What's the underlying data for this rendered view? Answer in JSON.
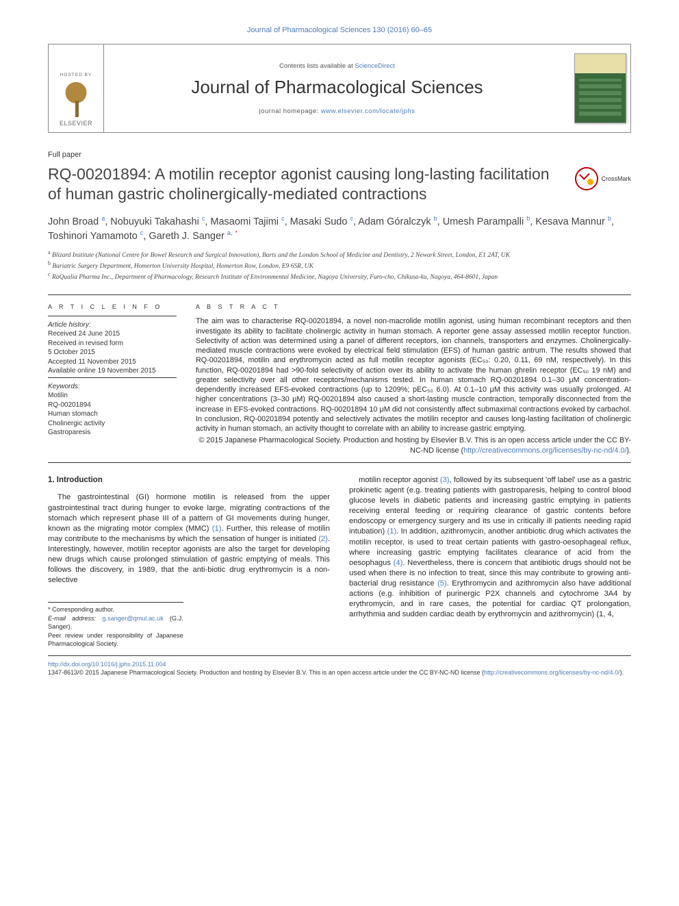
{
  "running_head": "Journal of Pharmacological Sciences 130 (2016) 60–65",
  "masthead": {
    "hosted_by": "HOSTED BY",
    "publisher": "ELSEVIER",
    "contents_prefix": "Contents lists available at ",
    "contents_link": "ScienceDirect",
    "journal": "Journal of Pharmacological Sciences",
    "homepage_prefix": "journal homepage: ",
    "homepage_url": "www.elsevier.com/locate/jphs"
  },
  "article_type": "Full paper",
  "title": "RQ-00201894: A motilin receptor agonist causing long-lasting facilitation of human gastric cholinergically-mediated contractions",
  "crossmark": "CrossMark",
  "authors_html": "John Broad <sup>a</sup>, Nobuyuki Takahashi <sup>c</sup>, Masaomi Tajimi <sup>c</sup>, Masaki Sudo <sup>c</sup>, Adam Góralczyk <sup>b</sup>, Umesh Parampalli <sup>b</sup>, Kesava Mannur <sup>b</sup>, Toshinori Yamamoto <sup>c</sup>, Gareth J. Sanger <sup>a,</sup> <sup class=\"corr\">*</sup>",
  "affiliations": {
    "a": "Blizard Institute (National Centre for Bowel Research and Surgical Innovation), Barts and the London School of Medicine and Dentistry, 2 Newark Street, London, E1 2AT, UK",
    "b": "Bariatric Surgery Department, Homerton University Hospital, Homerton Row, London, E9 6SR, UK",
    "c": "RaQualia Pharma Inc., Department of Pharmacology, Research Institute of Environmental Medicine, Nagoya University, Furo-cho, Chikusa-ku, Nagoya, 464-8601, Japan"
  },
  "info": {
    "heading": "A R T I C L E   I N F O",
    "history_label": "Article history:",
    "history": [
      "Received 24 June 2015",
      "Received in revised form",
      "5 October 2015",
      "Accepted 11 November 2015",
      "Available online 19 November 2015"
    ],
    "keywords_label": "Keywords:",
    "keywords": [
      "Motilin",
      "RQ-00201894",
      "Human stomach",
      "Cholinergic activity",
      "Gastroparesis"
    ]
  },
  "abstract": {
    "heading": "A B S T R A C T",
    "body": "The aim was to characterise RQ-00201894, a novel non-macrolide motilin agonist, using human recombinant receptors and then investigate its ability to facilitate cholinergic activity in human stomach. A reporter gene assay assessed motilin receptor function. Selectivity of action was determined using a panel of different receptors, ion channels, transporters and enzymes. Cholinergically-mediated muscle contractions were evoked by electrical field stimulation (EFS) of human gastric antrum. The results showed that RQ-00201894, motilin and erythromycin acted as full motilin receptor agonists (EC₅₀: 0.20, 0.11, 69 nM, respectively). In this function, RQ-00201894 had >90-fold selectivity of action over its ability to activate the human ghrelin receptor (EC₅₀ 19 nM) and greater selectivity over all other receptors/mechanisms tested. In human stomach RQ-00201894 0.1–30 μM concentration-dependently increased EFS-evoked contractions (up to 1209%; pEC₅₀ 6.0). At 0.1–10 μM this activity was usually prolonged. At higher concentrations (3–30 μM) RQ-00201894 also caused a short-lasting muscle contraction, temporally disconnected from the increase in EFS-evoked contractions. RQ-00201894 10 μM did not consistently affect submaximal contractions evoked by carbachol. In conclusion, RQ-00201894 potently and selectively activates the motilin receptor and causes long-lasting facilitation of cholinergic activity in human stomach, an activity thought to correlate with an ability to increase gastric emptying.",
    "copyright": "© 2015 Japanese Pharmacological Society. Production and hosting by Elsevier B.V. This is an open access article under the CC BY-NC-ND license (",
    "license_url": "http://creativecommons.org/licenses/by-nc-nd/4.0/",
    "copyright_suffix": ")."
  },
  "section1_heading": "1. Introduction",
  "col_left": "The gastrointestinal (GI) hormone motilin is released from the upper gastrointestinal tract during hunger to evoke large, migrating contractions of the stomach which represent phase III of a pattern of GI movements during hunger, known as the migrating motor complex (MMC) (1). Further, this release of motilin may contribute to the mechanisms by which the sensation of hunger is initiated (2). Interestingly, however, motilin receptor agonists are also the target for developing new drugs which cause prolonged stimulation of gastric emptying of meals. This follows the discovery, in 1989, that the anti-biotic drug erythromycin is a non-selective",
  "col_right": "motilin receptor agonist (3), followed by its subsequent 'off label' use as a gastric prokinetic agent (e.g. treating patients with gastroparesis, helping to control blood glucose levels in diabetic patients and increasing gastric emptying in patients receiving enteral feeding or requiring clearance of gastric contents before endoscopy or emergency surgery and its use in critically ill patients needing rapid intubation) (1). In addition, azithromycin, another antibiotic drug which activates the motilin receptor, is used to treat certain patients with gastro-oesophageal reflux, where increasing gastric emptying facilitates clearance of acid from the oesophagus (4). Nevertheless, there is concern that antibiotic drugs should not be used when there is no infection to treat, since this may contribute to growing anti-bacterial drug resistance (5). Erythromycin and azithromycin also have additional actions (e.g. inhibition of purinergic P2X channels and cytochrome 3A4 by erythromycin, and in rare cases, the potential for cardiac QT prolongation, arrhythmia and sudden cardiac death by erythromycin and azithromycin) (1, 4,",
  "footnotes": {
    "corr_label": "* Corresponding author.",
    "email_label": "E-mail address:",
    "email": "g.sanger@qmul.ac.uk",
    "email_suffix": " (G.J. Sanger).",
    "peer": "Peer review under responsibility of Japanese Pharmacological Society."
  },
  "bottom": {
    "doi": "http://dx.doi.org/10.1016/j.jphs.2015.11.004",
    "issn_line": "1347-8613/© 2015 Japanese Pharmacological Society. Production and hosting by Elsevier B.V. This is an open access article under the CC BY-NC-ND license (",
    "license_url": "http://creativecommons.org/licenses/by-nc-nd/4.0/",
    "suffix": ")."
  },
  "colors": {
    "link": "#4a7ab8",
    "text": "#2a2a2a",
    "rule": "#333333"
  }
}
